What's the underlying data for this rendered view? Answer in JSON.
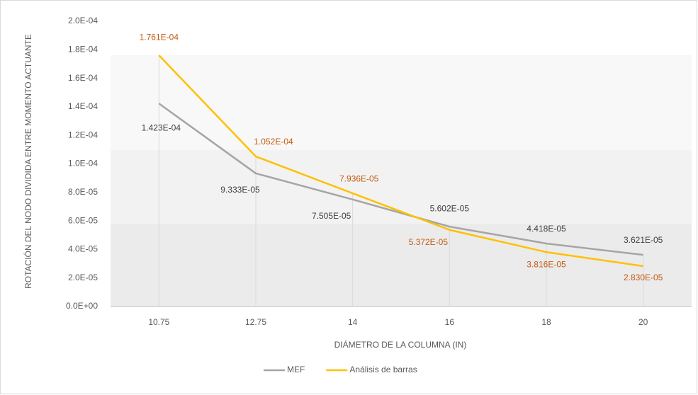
{
  "chart_data": {
    "type": "line",
    "x_label": "DIÁMETRO DE LA COLUMNA (IN)",
    "y_label": "ROTACIÓN DEL NODO DIVIDIDA ENTRE MOMENTO ACTUANTE",
    "categories": [
      "10.75",
      "12.75",
      "14",
      "16",
      "18",
      "20"
    ],
    "series": [
      {
        "name": "MEF",
        "color": "#a5a5a5",
        "label_color": "#404040",
        "values": [
          0.0001423,
          9.333e-05,
          7.505e-05,
          5.602e-05,
          4.418e-05,
          3.621e-05
        ],
        "value_labels": [
          "1.423E-04",
          "9.333E-05",
          "7.505E-05",
          "5.602E-05",
          "4.418E-05",
          "3.621E-05"
        ]
      },
      {
        "name": "Análisis de barras",
        "color": "#ffc000",
        "label_color": "#c55a11",
        "values": [
          0.0001761,
          0.0001052,
          7.936e-05,
          5.372e-05,
          3.816e-05,
          2.83e-05
        ],
        "value_labels": [
          "1.761E-04",
          "1.052E-04",
          "7.936E-05",
          "5.372E-05",
          "3.816E-05",
          "2.830E-05"
        ]
      }
    ],
    "ylim": [
      0,
      0.0002
    ],
    "yticks": [
      {
        "value": 0,
        "label": "0.0E+00"
      },
      {
        "value": 2e-05,
        "label": "2.0E-05"
      },
      {
        "value": 4e-05,
        "label": "4.0E-05"
      },
      {
        "value": 6e-05,
        "label": "6.0E-05"
      },
      {
        "value": 8e-05,
        "label": "8.0E-05"
      },
      {
        "value": 0.0001,
        "label": "1.0E-04"
      },
      {
        "value": 0.00012,
        "label": "1.2E-04"
      },
      {
        "value": 0.00014,
        "label": "1.4E-04"
      },
      {
        "value": 0.00016,
        "label": "1.6E-04"
      },
      {
        "value": 0.00018,
        "label": "1.8E-04"
      },
      {
        "value": 0.0002,
        "label": "2.0E-04"
      }
    ],
    "legend": "bottom"
  }
}
